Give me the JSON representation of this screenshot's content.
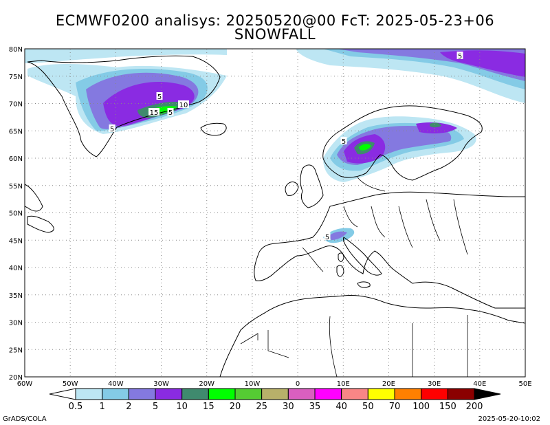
{
  "title_line1": "ECMWF0200 analisys: 20250520@00 FcT: 2025-05-23+06",
  "title_line2": "SNOWFALL",
  "lat_labels": [
    "80N",
    "75N",
    "70N",
    "65N",
    "60N",
    "55N",
    "50N",
    "45N",
    "40N",
    "35N",
    "30N",
    "25N",
    "20N"
  ],
  "lon_labels": [
    "60W",
    "50W",
    "40W",
    "30W",
    "20W",
    "10W",
    "0",
    "10E",
    "20E",
    "30E",
    "40E",
    "50E"
  ],
  "contour_labels": [
    "5",
    "5",
    "10",
    "15",
    "5",
    "5",
    "5",
    "5"
  ],
  "colorbar": {
    "levels": [
      "0.5",
      "1",
      "2",
      "5",
      "10",
      "15",
      "20",
      "25",
      "30",
      "35",
      "40",
      "50",
      "70",
      "100",
      "150",
      "200"
    ],
    "colors": [
      "#ffffff",
      "#bde6f3",
      "#84cbe6",
      "#8479e0",
      "#8a2be2",
      "#3f8a6e",
      "#00ff00",
      "#55cc33",
      "#b8b06a",
      "#d95fbf",
      "#ff00ff",
      "#f98686",
      "#ffff00",
      "#ff8000",
      "#ff0000",
      "#8b0000",
      "#000000"
    ]
  },
  "footer_left": "GrADS/COLA",
  "footer_right": "2025-05-20-10:02"
}
